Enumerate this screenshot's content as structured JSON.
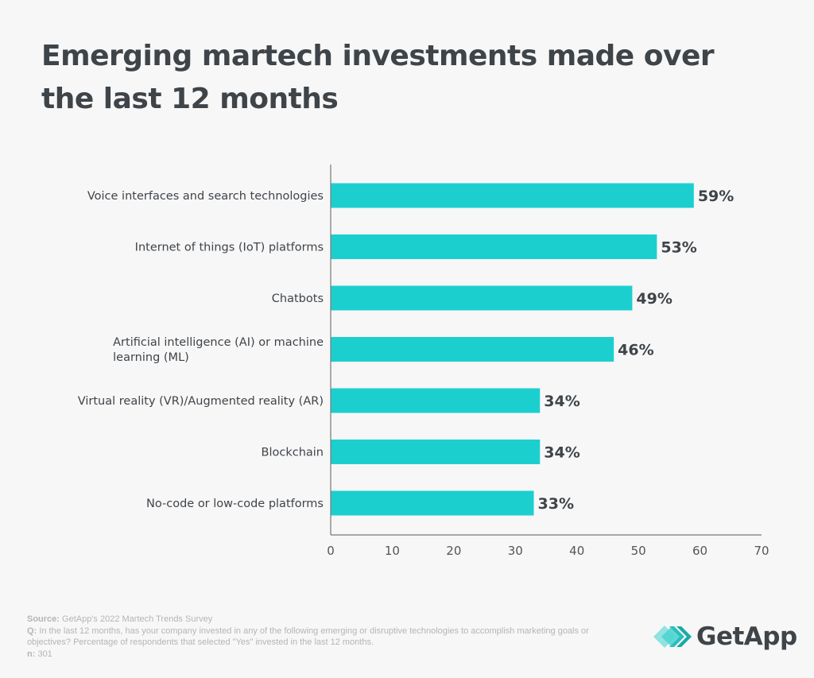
{
  "title": "Emerging martech investments made over the last 12 months",
  "chart_data": {
    "type": "bar",
    "orientation": "horizontal",
    "title": "Emerging martech investments made over the last 12 months",
    "categories": [
      [
        "Voice interfaces and search technologies"
      ],
      [
        "Internet of things (IoT) platforms"
      ],
      [
        "Chatbots"
      ],
      [
        "Artificial intelligence (AI) or machine",
        "learning (ML)"
      ],
      [
        "Virtual reality (VR)/Augmented reality (AR)"
      ],
      [
        "Blockchain"
      ],
      [
        "No-code or low-code platforms"
      ]
    ],
    "values": [
      59,
      53,
      49,
      46,
      34,
      34,
      33
    ],
    "value_labels": [
      "59%",
      "53%",
      "49%",
      "46%",
      "34%",
      "34%",
      "33%"
    ],
    "xlabel": "",
    "ylabel": "",
    "xlim": [
      0,
      70
    ],
    "xticks": [
      0,
      10,
      20,
      30,
      40,
      50,
      60,
      70
    ],
    "grid": false,
    "bar_color": "#1ccfcf"
  },
  "footer": {
    "source_label": "Source:",
    "source_text": " GetApp's 2022 Martech Trends Survey",
    "q_label": "Q:",
    "q_text": " In the last 12 months, has your company invested in any of the following emerging or disruptive technologies to accomplish marketing goals or objectives? Percentage of respondents that selected \"Yes\" invested in the last 12 months.",
    "n_label": "n:",
    "n_text": " 301"
  },
  "logo": {
    "text": "GetApp"
  }
}
